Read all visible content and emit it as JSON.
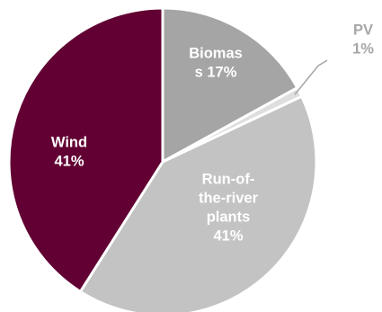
{
  "chart_data": {
    "type": "pie",
    "slices": [
      {
        "label_lines": [
          "Biomas",
          "s 17%"
        ],
        "value": 17,
        "color": "#a5a5a5",
        "text_color": "#ffffff"
      },
      {
        "label_lines": [
          "PV",
          "1%"
        ],
        "value": 1,
        "color": "#dedede",
        "text_color": "#a6a6a6"
      },
      {
        "label_lines": [
          "Run-of-",
          "the-river",
          "plants",
          "41%"
        ],
        "value": 41,
        "color": "#c3c3c3",
        "text_color": "#ffffff"
      },
      {
        "label_lines": [
          "Wind",
          "41%"
        ],
        "value": 41,
        "color": "#620033",
        "text_color": "#ffffff"
      }
    ],
    "start_angle_deg": 0,
    "direction": "clockwise",
    "slice_border_color": "#ffffff"
  }
}
